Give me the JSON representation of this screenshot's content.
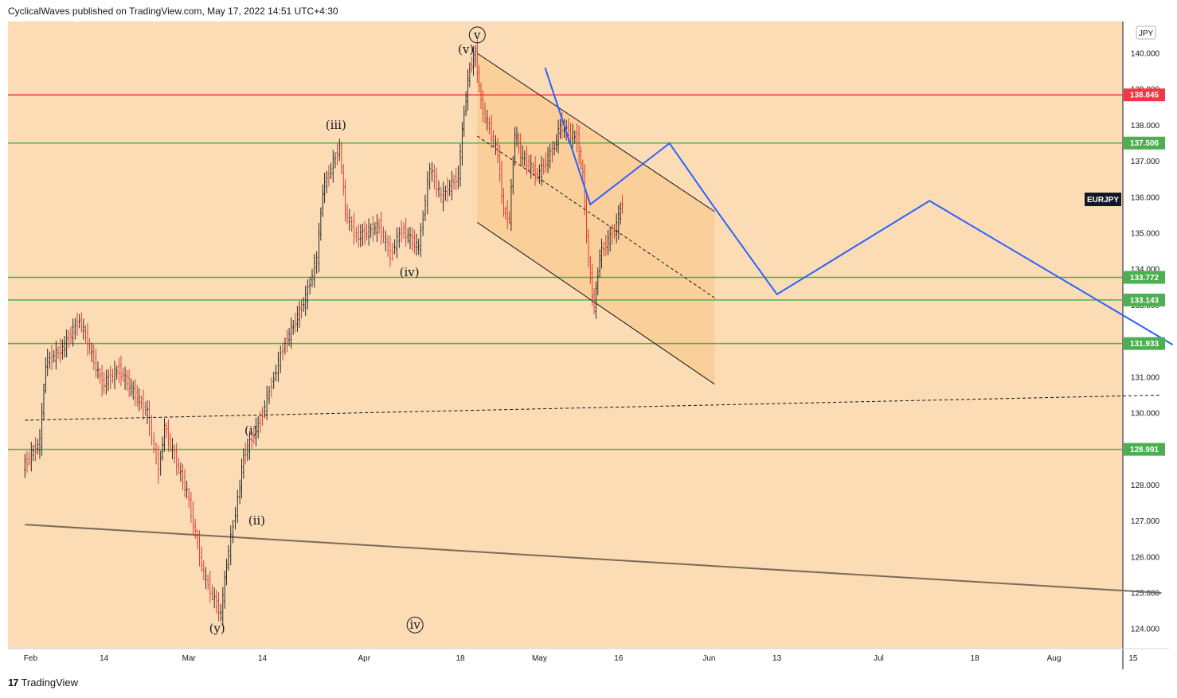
{
  "header": {
    "published": "CyclicalWaves published on TradingView.com, May 17, 2022 14:51 UTC+4:30"
  },
  "footer": {
    "logo": "17",
    "brand": "TradingView"
  },
  "chart_data": {
    "type": "candlestick",
    "symbol": "EURJPY",
    "currency": "JPY",
    "background": "#fbdcb4",
    "y_ticks": [
      124.0,
      125.0,
      126.0,
      127.0,
      128.0,
      129.0,
      130.0,
      131.0,
      132.0,
      133.0,
      134.0,
      135.0,
      136.0,
      137.0,
      138.0,
      139.0,
      140.0
    ],
    "x_ticks": [
      "Feb",
      "14",
      "Mar",
      "14",
      "Apr",
      "18",
      "May",
      "16",
      "Jun",
      "13",
      "Jul",
      "18",
      "Aug",
      "15"
    ],
    "x_tick_dates": [
      "2022-02-01",
      "2022-02-14",
      "2022-03-01",
      "2022-03-14",
      "2022-04-01",
      "2022-04-18",
      "2022-05-02",
      "2022-05-16",
      "2022-06-01",
      "2022-06-13",
      "2022-07-01",
      "2022-07-18",
      "2022-08-01",
      "2022-08-15"
    ],
    "horizontal_levels": [
      {
        "value": 138.845,
        "label": "138.845",
        "color": "#f23645"
      },
      {
        "value": 137.506,
        "label": "137.506",
        "color": "#4caf50"
      },
      {
        "value": 133.772,
        "label": "133.772",
        "color": "#4caf50"
      },
      {
        "value": 133.143,
        "label": "133.143",
        "color": "#4caf50"
      },
      {
        "value": 131.933,
        "label": "131.933",
        "color": "#4caf50"
      },
      {
        "value": 128.991,
        "label": "128.991",
        "color": "#4caf50"
      }
    ],
    "price_path": [
      [
        "2022-01-31",
        128.5
      ],
      [
        "2022-02-03",
        129.2
      ],
      [
        "2022-02-04",
        131.4
      ],
      [
        "2022-02-07",
        131.8
      ],
      [
        "2022-02-10",
        132.6
      ],
      [
        "2022-02-14",
        130.8
      ],
      [
        "2022-02-17",
        131.2
      ],
      [
        "2022-02-22",
        130.0
      ],
      [
        "2022-02-24",
        128.4
      ],
      [
        "2022-02-25",
        129.6
      ],
      [
        "2022-03-01",
        127.8
      ],
      [
        "2022-03-04",
        125.5
      ],
      [
        "2022-03-07",
        124.4
      ],
      [
        "2022-03-08",
        125.8
      ],
      [
        "2022-03-10",
        127.6
      ],
      [
        "2022-03-11",
        128.8
      ],
      [
        "2022-03-14",
        129.8
      ],
      [
        "2022-03-16",
        130.8
      ],
      [
        "2022-03-18",
        131.8
      ],
      [
        "2022-03-22",
        133.2
      ],
      [
        "2022-03-24",
        134.3
      ],
      [
        "2022-03-25",
        136.2
      ],
      [
        "2022-03-28",
        137.4
      ],
      [
        "2022-03-29",
        135.6
      ],
      [
        "2022-03-31",
        134.9
      ],
      [
        "2022-04-04",
        135.2
      ],
      [
        "2022-04-06",
        134.4
      ],
      [
        "2022-04-08",
        135.1
      ],
      [
        "2022-04-11",
        134.6
      ],
      [
        "2022-04-13",
        136.8
      ],
      [
        "2022-04-15",
        136.0
      ],
      [
        "2022-04-18",
        136.6
      ],
      [
        "2022-04-19",
        138.4
      ],
      [
        "2022-04-20",
        139.6
      ],
      [
        "2022-04-21",
        140.0
      ],
      [
        "2022-04-22",
        138.6
      ],
      [
        "2022-04-25",
        137.2
      ],
      [
        "2022-04-26",
        135.6
      ],
      [
        "2022-04-27",
        135.4
      ],
      [
        "2022-04-28",
        137.8
      ],
      [
        "2022-04-29",
        137.2
      ],
      [
        "2022-05-02",
        136.6
      ],
      [
        "2022-05-05",
        137.4
      ],
      [
        "2022-05-06",
        138.0
      ],
      [
        "2022-05-09",
        137.6
      ],
      [
        "2022-05-10",
        136.6
      ],
      [
        "2022-05-11",
        134.2
      ],
      [
        "2022-05-12",
        132.9
      ],
      [
        "2022-05-13",
        134.4
      ],
      [
        "2022-05-16",
        135.2
      ],
      [
        "2022-05-17",
        135.9
      ]
    ],
    "wave_labels": [
      {
        "text": "(v)",
        "date": "2022-04-19",
        "value": 140.0
      },
      {
        "text": "v",
        "date": "2022-04-21",
        "value": 140.4,
        "circled": true
      },
      {
        "text": "(iii)",
        "date": "2022-03-27",
        "value": 137.9
      },
      {
        "text": "(iv)",
        "date": "2022-04-09",
        "value": 133.8
      },
      {
        "text": "(i)",
        "date": "2022-03-12",
        "value": 129.4
      },
      {
        "text": "(ii)",
        "date": "2022-03-13",
        "value": 126.9
      },
      {
        "text": "(y)",
        "date": "2022-03-06",
        "value": 123.9
      },
      {
        "text": "iv",
        "date": "2022-04-10",
        "value": 124.0,
        "circled": true
      }
    ],
    "projection_path": [
      [
        "2022-05-03",
        139.6
      ],
      [
        "2022-05-11",
        135.8
      ],
      [
        "2022-05-25",
        137.5
      ],
      [
        "2022-06-02",
        135.7
      ],
      [
        "2022-06-13",
        133.3
      ],
      [
        "2022-07-10",
        135.9
      ],
      [
        "2022-08-22",
        131.9
      ]
    ],
    "channel": {
      "upper": [
        [
          "2022-04-21",
          140.0
        ],
        [
          "2022-06-02",
          135.6
        ]
      ],
      "lower": [
        [
          "2022-04-21",
          135.3
        ],
        [
          "2022-06-02",
          130.8
        ]
      ],
      "median": [
        [
          "2022-04-21",
          137.7
        ],
        [
          "2022-06-02",
          133.2
        ]
      ]
    },
    "trendlines": [
      {
        "style": "dashed",
        "points": [
          [
            "2022-01-31",
            129.8
          ],
          [
            "2022-08-20",
            130.5
          ]
        ]
      },
      {
        "style": "solid",
        "points": [
          [
            "2022-01-31",
            126.9
          ],
          [
            "2022-08-20",
            125.0
          ]
        ]
      }
    ]
  }
}
